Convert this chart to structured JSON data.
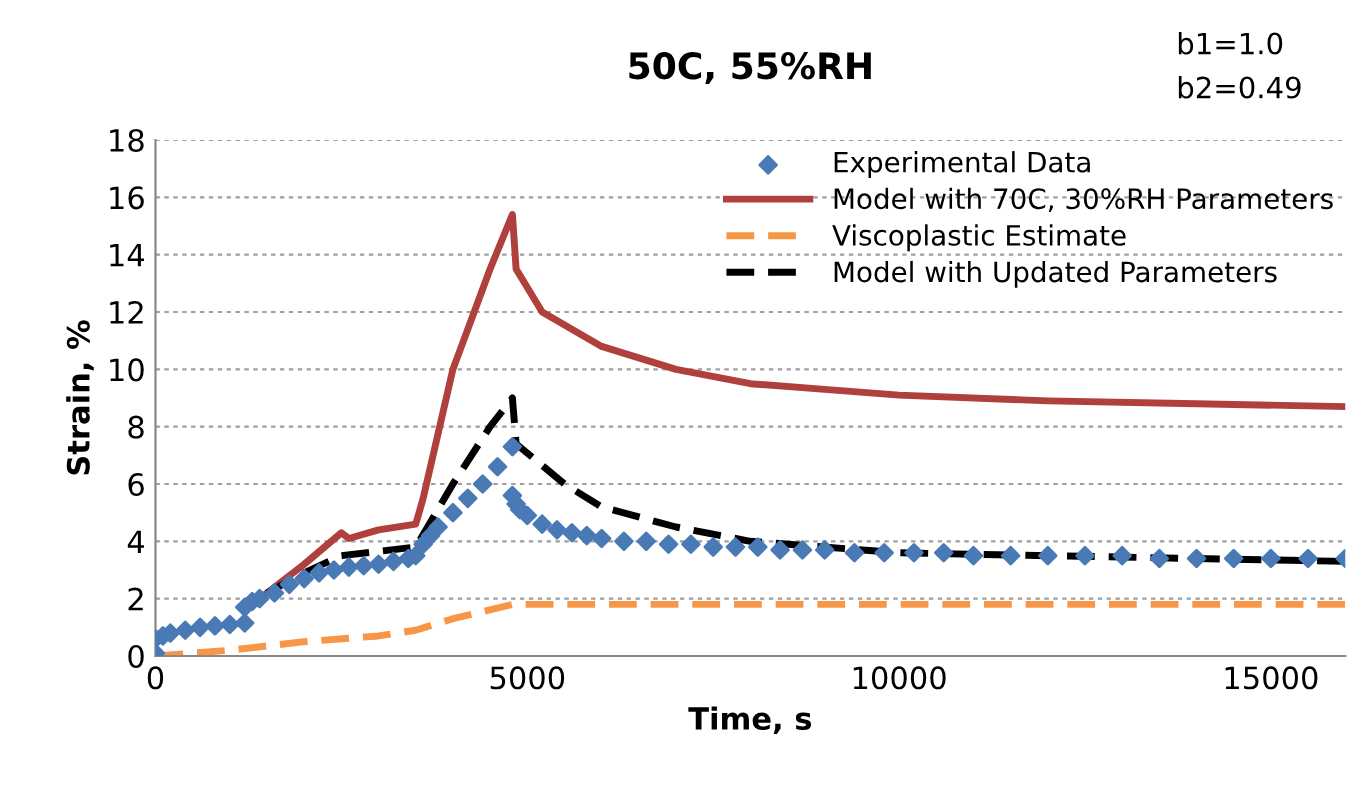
{
  "chart_data": {
    "type": "line",
    "title": "50C, 55%RH",
    "xlabel": "Time, s",
    "ylabel": "Strain, %",
    "annotations": [
      "b1=1.0",
      "b2=0.49"
    ],
    "xlim": [
      0,
      16000
    ],
    "xticks": [
      0,
      5000,
      10000,
      15000
    ],
    "ylim": [
      0,
      18
    ],
    "yticks": [
      0,
      2,
      4,
      6,
      8,
      10,
      12,
      14,
      16,
      18
    ],
    "grid": "y",
    "legend": "top right",
    "series": [
      {
        "name": "Experimental Data",
        "type": "scatter",
        "marker": "diamond",
        "color": "#4a7ab5",
        "x": [
          0,
          0,
          100,
          200,
          400,
          600,
          800,
          1000,
          1200,
          1200,
          1300,
          1400,
          1600,
          1800,
          2000,
          2200,
          2400,
          2600,
          2800,
          3000,
          3200,
          3400,
          3500,
          3600,
          3700,
          3800,
          4000,
          4200,
          4400,
          4600,
          4800,
          4800,
          4850,
          4900,
          5000,
          5200,
          5400,
          5600,
          5800,
          6000,
          6300,
          6600,
          6900,
          7200,
          7500,
          7800,
          8100,
          8400,
          8700,
          9000,
          9400,
          9800,
          10200,
          10600,
          11000,
          11500,
          12000,
          12500,
          13000,
          13500,
          14000,
          14500,
          15000,
          15500,
          16000
        ],
        "values": [
          0.1,
          0.6,
          0.7,
          0.8,
          0.9,
          1.0,
          1.05,
          1.1,
          1.15,
          1.7,
          1.9,
          2.0,
          2.2,
          2.5,
          2.7,
          2.9,
          3.0,
          3.1,
          3.15,
          3.2,
          3.3,
          3.4,
          3.5,
          3.9,
          4.2,
          4.5,
          5.0,
          5.5,
          6.0,
          6.6,
          7.3,
          5.6,
          5.3,
          5.1,
          4.9,
          4.6,
          4.4,
          4.3,
          4.2,
          4.1,
          4.0,
          4.0,
          3.9,
          3.9,
          3.8,
          3.8,
          3.8,
          3.7,
          3.7,
          3.7,
          3.6,
          3.6,
          3.6,
          3.6,
          3.5,
          3.5,
          3.5,
          3.5,
          3.5,
          3.4,
          3.4,
          3.4,
          3.4,
          3.4,
          3.4
        ]
      },
      {
        "name": "Model with 70C, 30%RH Parameters",
        "line_style": "solid",
        "color": "#b0403c",
        "x": [
          1500,
          2000,
          2500,
          2600,
          3000,
          3500,
          3600,
          4000,
          4500,
          4800,
          4850,
          5200,
          6000,
          7000,
          8000,
          9000,
          10000,
          12000,
          14000,
          16000
        ],
        "values": [
          2.2,
          3.2,
          4.3,
          4.1,
          4.4,
          4.6,
          5.5,
          10,
          13.5,
          15.4,
          13.5,
          12,
          10.8,
          10,
          9.5,
          9.3,
          9.1,
          8.9,
          8.8,
          8.7
        ]
      },
      {
        "name": "Viscoplastic Estimate",
        "line_style": "dashed",
        "color": "#f79646",
        "x": [
          0,
          1000,
          2000,
          3000,
          3500,
          4000,
          4800,
          16000
        ],
        "values": [
          0,
          0.2,
          0.5,
          0.7,
          0.9,
          1.3,
          1.8,
          1.8
        ]
      },
      {
        "name": "Model with Updated Parameters",
        "line_style": "dashed",
        "color": "#000000",
        "x": [
          1500,
          2000,
          2500,
          3500,
          4000,
          4500,
          4800,
          4850,
          5500,
          6000,
          7000,
          8000,
          10000,
          12000,
          14000,
          16000
        ],
        "values": [
          2.2,
          2.9,
          3.5,
          3.8,
          6,
          8,
          9.0,
          7.4,
          6,
          5.2,
          4.5,
          4.0,
          3.6,
          3.5,
          3.4,
          3.3
        ]
      }
    ]
  }
}
